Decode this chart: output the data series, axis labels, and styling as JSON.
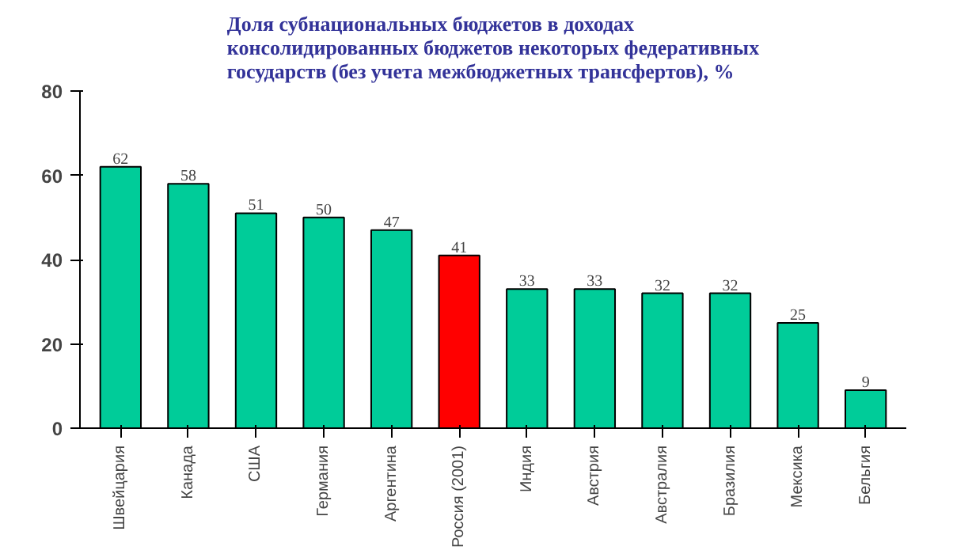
{
  "chart_data": {
    "type": "bar",
    "title": "Доля субнациональных бюджетов в доходах\nконсолидированных бюджетов некоторых федеративных\nгосударств (без учета межбюджетных трансфертов), %",
    "categories": [
      "Швейцария",
      "Канада",
      "США",
      "Германия",
      "Аргентина",
      "Россия (2001)",
      "Индия",
      "Австрия",
      "Австралия",
      "Бразилия",
      "Мексика",
      "Бельгия"
    ],
    "values": [
      62,
      58,
      51,
      50,
      47,
      41,
      33,
      33,
      32,
      32,
      25,
      9
    ],
    "colors": [
      "#00cc99",
      "#00cc99",
      "#00cc99",
      "#00cc99",
      "#00cc99",
      "#ff0000",
      "#00cc99",
      "#00cc99",
      "#00cc99",
      "#00cc99",
      "#00cc99",
      "#00cc99"
    ],
    "ylim": [
      0,
      80
    ],
    "yticks": [
      0,
      20,
      40,
      60,
      80
    ],
    "grid": false,
    "data_labels": true
  }
}
